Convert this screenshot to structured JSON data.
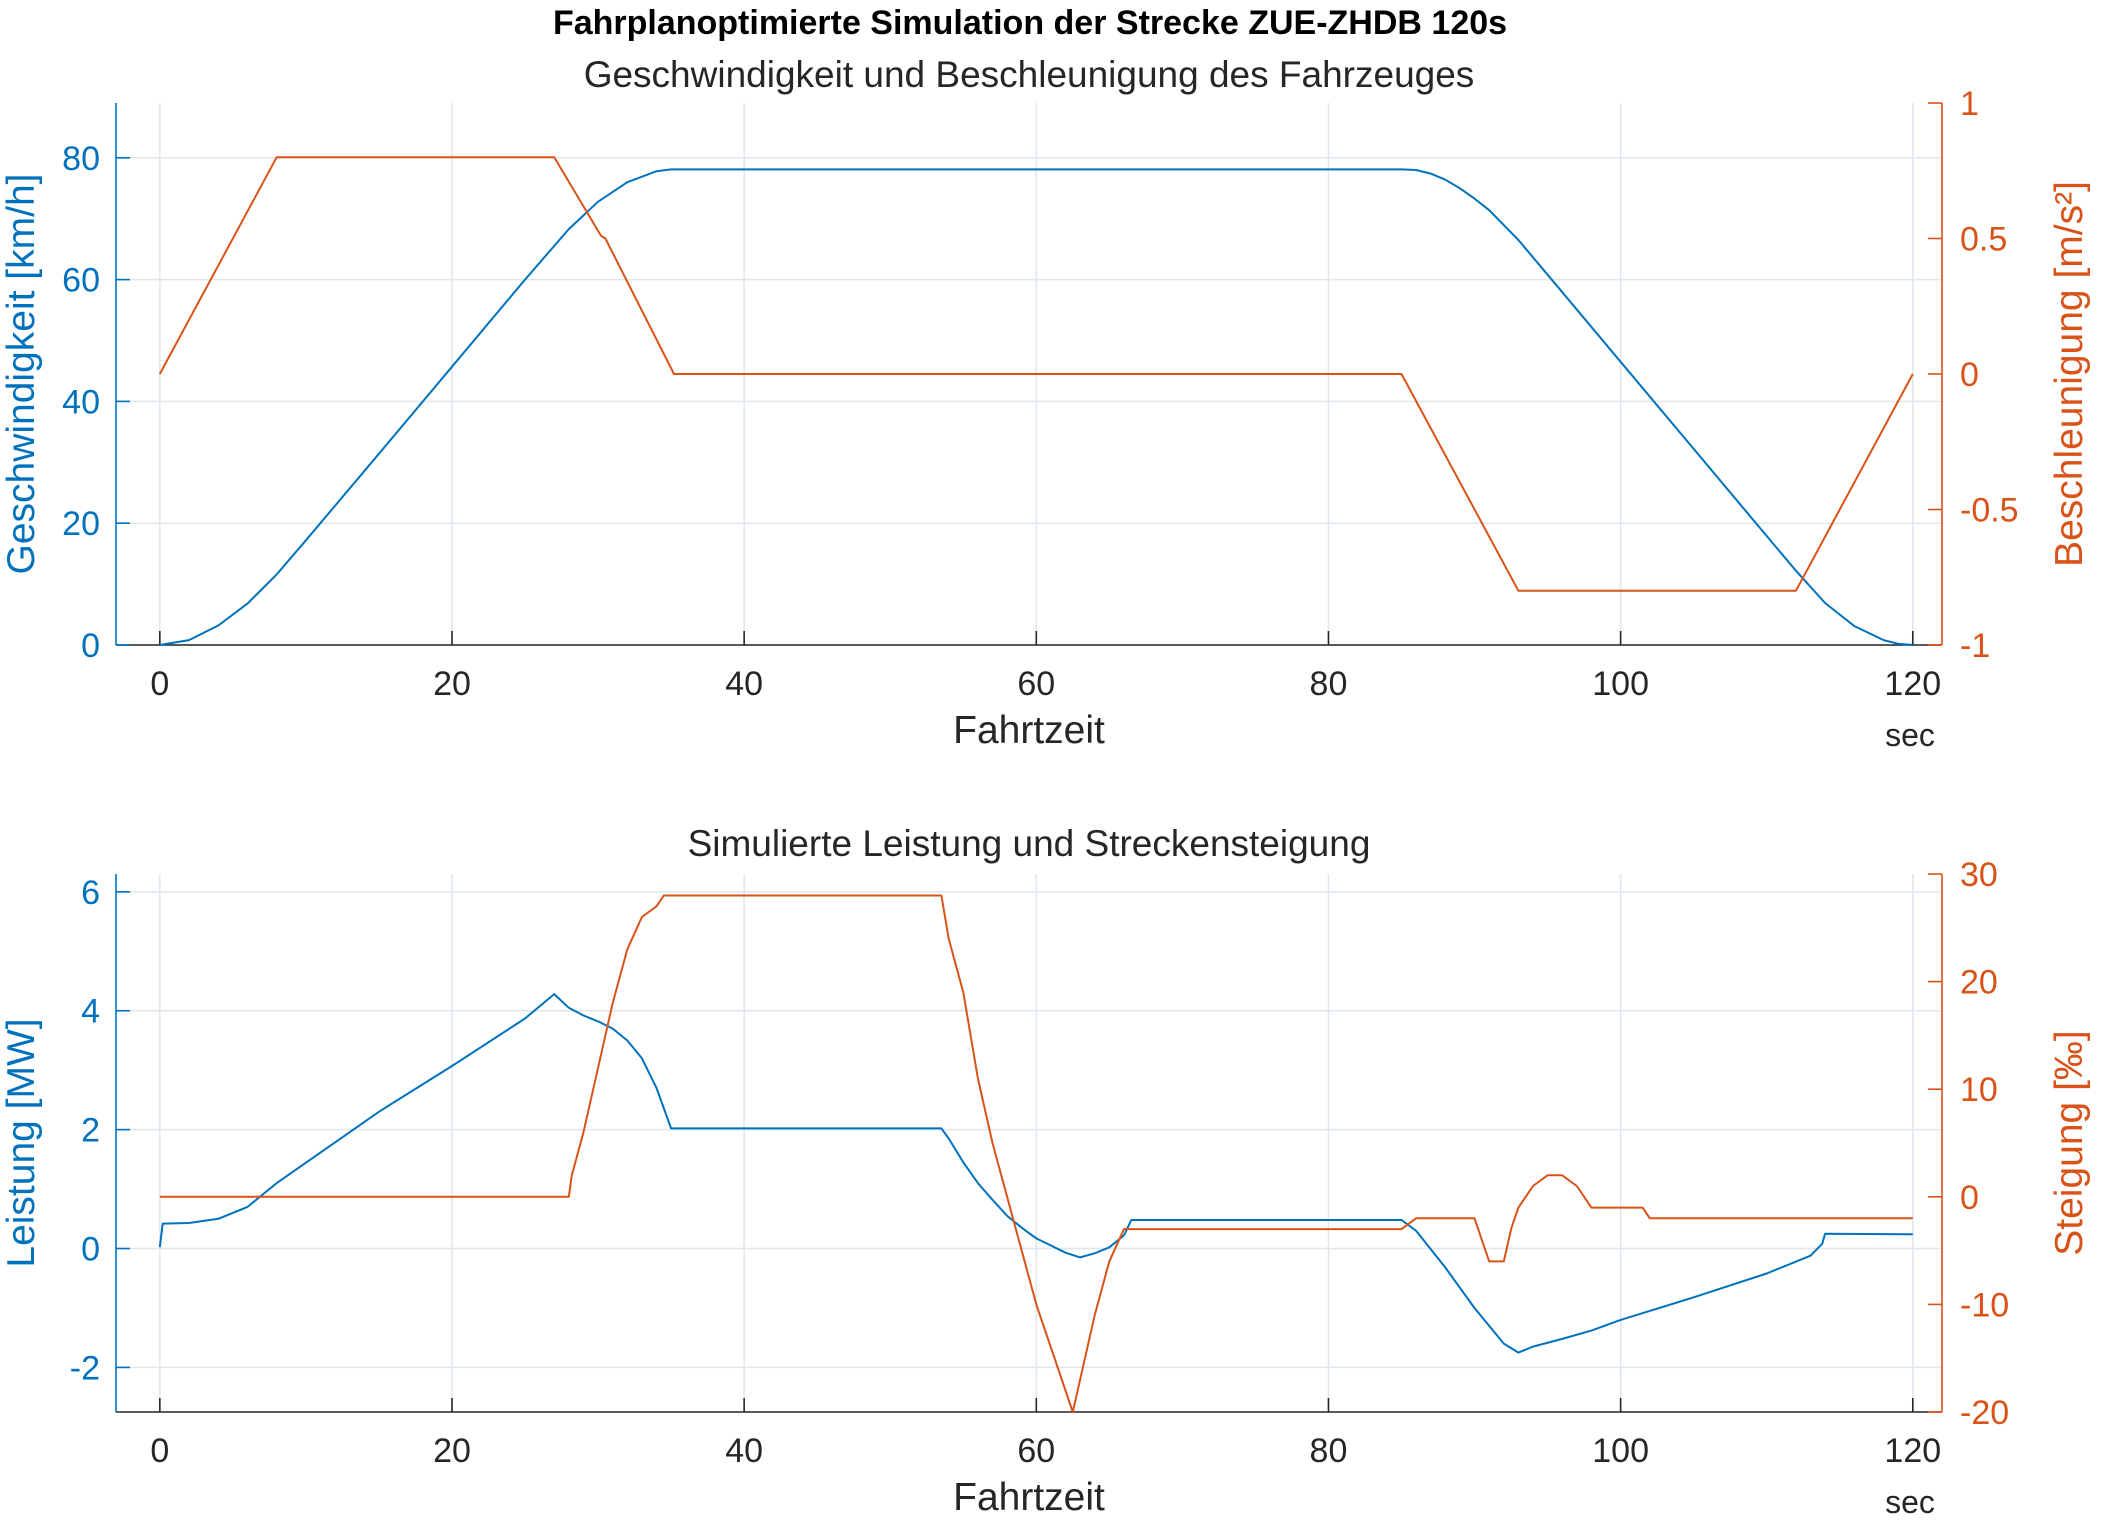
{
  "figure": {
    "title": "Fahrplanoptimierte Simulation der Strecke ZUE-ZHDB 120s"
  },
  "colors": {
    "left": "#0072BD",
    "right": "#D95319",
    "axis": "#262626",
    "grid": "#dfe6ee"
  },
  "chart_data": [
    {
      "type": "line",
      "title": "Geschwindigkeit und Beschleunigung des Fahrzeuges",
      "xlabel": "Fahrtzeit",
      "xunit": "sec",
      "xlim": [
        -3,
        122
      ],
      "xticks": [
        0,
        20,
        40,
        60,
        80,
        100,
        120
      ],
      "grid": true,
      "left_axis": {
        "label": "Geschwindigkeit [km/h]",
        "ylim": [
          0,
          89
        ],
        "ticks": [
          0,
          20,
          40,
          60,
          80
        ]
      },
      "right_axis": {
        "label": "Beschleunigung [m/s²]",
        "ylim": [
          -1,
          1
        ],
        "ticks": [
          -1,
          -0.5,
          0,
          0.5,
          1
        ],
        "tick_labels": [
          "-1",
          "-0.5",
          "0",
          "0.5",
          "1"
        ]
      },
      "series": [
        {
          "axis": "left",
          "x": [
            0,
            2,
            4,
            6,
            8,
            10,
            15,
            20,
            25,
            28,
            30,
            32,
            34,
            35,
            36,
            85,
            86,
            87,
            88,
            89,
            90,
            91,
            93,
            95,
            100,
            105,
            110,
            112,
            114,
            116,
            118,
            119,
            120
          ],
          "y": [
            0,
            0.8,
            3.2,
            6.8,
            11.6,
            17.2,
            31.4,
            45.7,
            60.0,
            68.3,
            72.8,
            76.0,
            77.8,
            78.1,
            78.1,
            78.1,
            78.0,
            77.4,
            76.4,
            75.0,
            73.3,
            71.4,
            66.5,
            60.8,
            46.5,
            32.2,
            17.9,
            12.2,
            6.9,
            3.1,
            0.8,
            0.2,
            0
          ]
        },
        {
          "axis": "right",
          "x": [
            0,
            8,
            27,
            30.2,
            30.5,
            35.2,
            85,
            93,
            112,
            120
          ],
          "y": [
            0,
            0.8,
            0.8,
            0.51,
            0.5,
            0,
            0,
            -0.8,
            -0.8,
            0
          ]
        }
      ]
    },
    {
      "type": "line",
      "title": "Simulierte Leistung und Streckensteigung",
      "xlabel": "Fahrtzeit",
      "xunit": "sec",
      "xlim": [
        -3,
        122
      ],
      "xticks": [
        0,
        20,
        40,
        60,
        80,
        100,
        120
      ],
      "grid": true,
      "left_axis": {
        "label": "Leistung [MW]",
        "ylim": [
          -2.75,
          6.3
        ],
        "ticks": [
          -2,
          0,
          2,
          4,
          6
        ]
      },
      "right_axis": {
        "label": "Steigung [‰]",
        "ylim": [
          -20,
          30
        ],
        "ticks": [
          -20,
          -10,
          0,
          10,
          20,
          30
        ]
      },
      "series": [
        {
          "axis": "left",
          "x": [
            0,
            0.2,
            2,
            4,
            6,
            8,
            15,
            20,
            25,
            27,
            28,
            29,
            30,
            31,
            32,
            33,
            34,
            35,
            53.5,
            54,
            55,
            56,
            57,
            58,
            59,
            60,
            61,
            62,
            63,
            64,
            65,
            66,
            66.5,
            85,
            86,
            88,
            90,
            92,
            93,
            94,
            96,
            98,
            100,
            102,
            105,
            110,
            113,
            113.8,
            114,
            120
          ],
          "y": [
            0.02,
            0.42,
            0.43,
            0.5,
            0.7,
            1.1,
            2.3,
            3.07,
            3.87,
            4.28,
            4.05,
            3.92,
            3.82,
            3.7,
            3.5,
            3.2,
            2.7,
            2.02,
            2.02,
            1.85,
            1.45,
            1.1,
            0.82,
            0.55,
            0.35,
            0.17,
            0.05,
            -0.07,
            -0.15,
            -0.08,
            0.02,
            0.22,
            0.48,
            0.48,
            0.3,
            -0.32,
            -1.0,
            -1.6,
            -1.75,
            -1.65,
            -1.52,
            -1.38,
            -1.2,
            -1.05,
            -0.82,
            -0.42,
            -0.12,
            0.08,
            0.25,
            0.24
          ]
        },
        {
          "axis": "right",
          "x": [
            0,
            28,
            28.2,
            29,
            30,
            31,
            32,
            33,
            34,
            34.5,
            35,
            53.5,
            54,
            55,
            56,
            57,
            58,
            59,
            60,
            61,
            62,
            62.5,
            63,
            64,
            65,
            66,
            66.5,
            85,
            86,
            88,
            90,
            90.5,
            91,
            92,
            92.5,
            93,
            94,
            95,
            96,
            97,
            98,
            100,
            101.5,
            102,
            120
          ],
          "y": [
            0,
            0,
            2,
            6,
            12,
            18,
            23,
            26,
            27,
            28,
            28,
            28,
            24,
            19,
            11,
            5,
            0,
            -5,
            -10,
            -14,
            -18,
            -20,
            -17,
            -11,
            -6,
            -3,
            -3,
            -3,
            -2,
            -2,
            -2,
            -4,
            -6,
            -6,
            -3,
            -1,
            1,
            2,
            2,
            1,
            -1,
            -1,
            -1,
            -2,
            -2
          ]
        }
      ]
    }
  ]
}
